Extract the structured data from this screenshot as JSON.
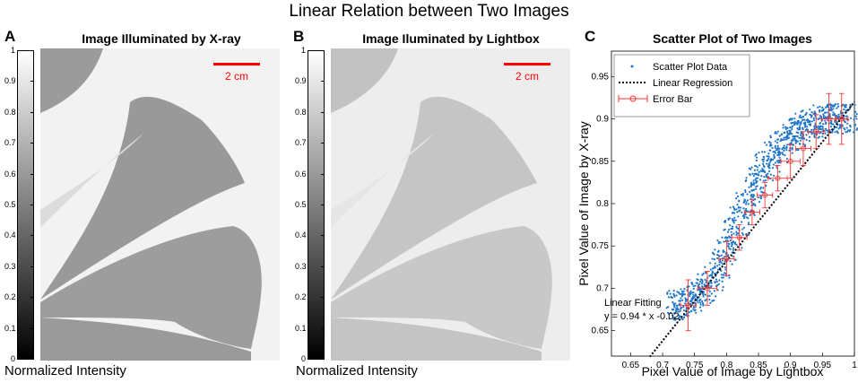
{
  "figure": {
    "title": "Linear Relation between Two Images",
    "panel_a": {
      "letter": "A",
      "title": "Image Illuminated by X-ray",
      "scale_label": "2 cm",
      "colorbar_label": "Normalized Intensity"
    },
    "panel_b": {
      "letter": "B",
      "title": "Image Iluminated by Lightbox",
      "scale_label": "2 cm",
      "colorbar_label": "Normalized Intensity"
    },
    "panel_c": {
      "letter": "C"
    },
    "colorbar_ticks": [
      "1",
      "0.9",
      "0.8",
      "0.7",
      "0.6",
      "0.5",
      "0.4",
      "0.3",
      "0.2",
      "0.1",
      "0"
    ],
    "colors": {
      "scale_bar": "#ff0000",
      "scatter": "#2077c8",
      "error_bar": "#ff3333",
      "regression": "#000000"
    }
  },
  "chart_data": {
    "type": "scatter",
    "title": "Scatter Plot of Two Images",
    "xlabel": "Pixel Value of Image by Lightbox",
    "ylabel": "Pixel Value of Image by X-ray",
    "xlim": [
      0.62,
      1.0
    ],
    "ylim": [
      0.62,
      0.98
    ],
    "xticks": [
      0.65,
      0.7,
      0.75,
      0.8,
      0.85,
      0.9,
      0.95,
      1.0
    ],
    "xtick_labels": [
      "0.65",
      "0.7",
      "0.75",
      "0.8",
      "0.85",
      "0.9",
      "0.95",
      "1"
    ],
    "yticks": [
      0.65,
      0.7,
      0.75,
      0.8,
      0.85,
      0.9,
      0.95
    ],
    "ytick_labels": [
      "0.65",
      "0.7",
      "0.75",
      "0.8",
      "0.85",
      "0.9",
      "0.95"
    ],
    "legend_position": "top-left",
    "series": [
      {
        "name": "Scatter Plot Data",
        "kind": "points",
        "x": [
          0.72,
          0.73,
          0.74,
          0.75,
          0.76,
          0.77,
          0.78,
          0.79,
          0.8,
          0.81,
          0.82,
          0.83,
          0.84,
          0.85,
          0.86,
          0.87,
          0.88,
          0.89,
          0.9,
          0.91,
          0.92,
          0.93,
          0.94,
          0.95,
          0.96,
          0.97,
          0.98,
          0.99
        ],
        "y": [
          0.68,
          0.68,
          0.685,
          0.69,
          0.695,
          0.7,
          0.715,
          0.73,
          0.745,
          0.765,
          0.78,
          0.8,
          0.815,
          0.83,
          0.845,
          0.855,
          0.865,
          0.875,
          0.88,
          0.885,
          0.89,
          0.895,
          0.895,
          0.9,
          0.9,
          0.9,
          0.9,
          0.9
        ]
      },
      {
        "name": "Linear Regression",
        "kind": "line",
        "slope": 0.94,
        "intercept": -0.02
      },
      {
        "name": "Error Bar",
        "kind": "errorbar",
        "x": [
          0.74,
          0.77,
          0.8,
          0.82,
          0.84,
          0.86,
          0.88,
          0.9,
          0.92,
          0.94,
          0.96,
          0.98
        ],
        "y": [
          0.68,
          0.7,
          0.735,
          0.76,
          0.79,
          0.81,
          0.83,
          0.85,
          0.865,
          0.885,
          0.9,
          0.9
        ],
        "xerr": [
          0.012,
          0.015,
          0.012,
          0.012,
          0.012,
          0.012,
          0.015,
          0.015,
          0.012,
          0.012,
          0.012,
          0.01
        ],
        "yerr": [
          0.03,
          0.02,
          0.02,
          0.015,
          0.015,
          0.015,
          0.015,
          0.02,
          0.02,
          0.02,
          0.03,
          0.03
        ]
      }
    ],
    "annotation": {
      "line1": "Linear Fitting",
      "line2": "y = 0.94 * x -0.02"
    }
  }
}
